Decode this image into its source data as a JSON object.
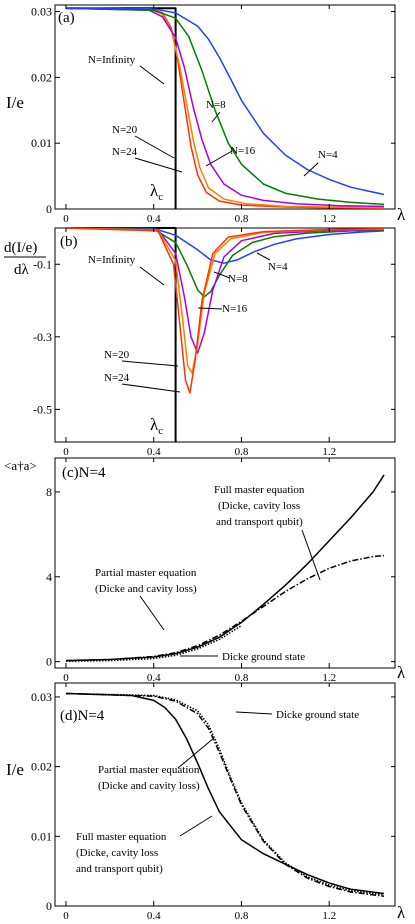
{
  "chart_data": [
    {
      "panel": "(a)",
      "type": "line",
      "ylabel": "I/e",
      "xlabel": "λ",
      "xlim": [
        -0.05,
        1.5
      ],
      "ylim": [
        0,
        0.031
      ],
      "xticks": [
        "0",
        "0.4",
        "0.8",
        "1.2"
      ],
      "yticks": [
        "0",
        "0.01",
        "0.02",
        "0.03"
      ],
      "critical_label": "λ",
      "critical_sub": "c",
      "critical_x": 0.5,
      "series": [
        {
          "name": "N=Infinity",
          "color": "#000000",
          "x": [
            0,
            0.49,
            0.5,
            0.5
          ],
          "y": [
            0.0305,
            0.0305,
            0.0305,
            0
          ]
        },
        {
          "name": "N=24",
          "color": "#ff3300",
          "x": [
            0,
            0.38,
            0.44,
            0.48,
            0.51,
            0.54,
            0.57,
            0.6,
            0.64,
            0.7,
            0.8,
            1.0,
            1.2,
            1.45
          ],
          "y": [
            0.0305,
            0.0304,
            0.0298,
            0.0275,
            0.0225,
            0.016,
            0.0095,
            0.0052,
            0.0025,
            0.0012,
            0.0006,
            0.0003,
            0.0002,
            0.0001
          ]
        },
        {
          "name": "N=20",
          "color": "#ff7f00",
          "x": [
            0,
            0.38,
            0.44,
            0.48,
            0.52,
            0.55,
            0.58,
            0.61,
            0.65,
            0.72,
            0.82,
            1.0,
            1.2,
            1.45
          ],
          "y": [
            0.0305,
            0.0304,
            0.0296,
            0.0272,
            0.0215,
            0.016,
            0.0105,
            0.0063,
            0.0032,
            0.0015,
            0.0008,
            0.0004,
            0.0003,
            0.0002
          ]
        },
        {
          "name": "N=16",
          "color": "#aa00ee",
          "x": [
            0,
            0.38,
            0.44,
            0.5,
            0.54,
            0.58,
            0.62,
            0.66,
            0.72,
            0.8,
            0.9,
            1.05,
            1.25,
            1.45
          ],
          "y": [
            0.0305,
            0.0302,
            0.0292,
            0.026,
            0.0215,
            0.0155,
            0.0105,
            0.0068,
            0.0038,
            0.0021,
            0.0013,
            0.0008,
            0.0005,
            0.0004
          ]
        },
        {
          "name": "N=8",
          "color": "#007f00",
          "x": [
            0,
            0.4,
            0.5,
            0.56,
            0.62,
            0.68,
            0.74,
            0.8,
            0.9,
            1.0,
            1.15,
            1.3,
            1.45
          ],
          "y": [
            0.0305,
            0.0302,
            0.029,
            0.0262,
            0.021,
            0.015,
            0.01,
            0.0068,
            0.0038,
            0.0024,
            0.0015,
            0.001,
            0.0007
          ]
        },
        {
          "name": "N=4",
          "color": "#2040ff",
          "x": [
            0,
            0.4,
            0.5,
            0.6,
            0.65,
            0.7,
            0.75,
            0.8,
            0.9,
            1.0,
            1.1,
            1.2,
            1.3,
            1.45
          ],
          "y": [
            0.0305,
            0.0304,
            0.0298,
            0.0278,
            0.0258,
            0.023,
            0.0198,
            0.0165,
            0.0115,
            0.0082,
            0.006,
            0.0045,
            0.0033,
            0.0022
          ]
        }
      ],
      "annotations": [
        {
          "text": "N=Infinity"
        },
        {
          "text": "N=8"
        },
        {
          "text": "N=16"
        },
        {
          "text": "N=20"
        },
        {
          "text": "N=24"
        },
        {
          "text": "N=4"
        }
      ]
    },
    {
      "panel": "(b)",
      "type": "line",
      "ylabel_num": "d(I/e)",
      "ylabel_den": "dλ",
      "xlabel": "",
      "xlim": [
        -0.05,
        1.5
      ],
      "ylim": [
        -0.59,
        0.0
      ],
      "xticks": [
        "0",
        "0.4",
        "0.8",
        "1.2"
      ],
      "yticks": [
        "-0.1",
        "-0.3",
        "-0.5"
      ],
      "critical_label": "λ",
      "critical_sub": "c",
      "critical_x": 0.5,
      "series": [
        {
          "name": "N=Infinity",
          "color": "#000000",
          "x": [
            0,
            0.49,
            0.5,
            0.5
          ],
          "y": [
            0,
            0,
            0,
            -0.59
          ]
        },
        {
          "name": "N=4",
          "color": "#2040ff",
          "x": [
            0,
            0.4,
            0.5,
            0.6,
            0.66,
            0.72,
            0.78,
            0.86,
            0.95,
            1.05,
            1.2,
            1.35,
            1.45
          ],
          "y": [
            0,
            -0.001,
            -0.02,
            -0.06,
            -0.088,
            -0.097,
            -0.088,
            -0.065,
            -0.045,
            -0.03,
            -0.018,
            -0.011,
            -0.008
          ]
        },
        {
          "name": "N=8",
          "color": "#007f00",
          "x": [
            0,
            0.4,
            0.5,
            0.55,
            0.6,
            0.63,
            0.66,
            0.7,
            0.76,
            0.85,
            0.95,
            1.1,
            1.3,
            1.45
          ],
          "y": [
            0,
            -0.003,
            -0.04,
            -0.1,
            -0.17,
            -0.19,
            -0.175,
            -0.13,
            -0.075,
            -0.04,
            -0.024,
            -0.014,
            -0.008,
            -0.006
          ]
        },
        {
          "name": "N=16",
          "color": "#aa00ee",
          "x": [
            0,
            0.42,
            0.5,
            0.54,
            0.57,
            0.6,
            0.63,
            0.67,
            0.72,
            0.8,
            0.95,
            1.2,
            1.45
          ],
          "y": [
            0,
            -0.005,
            -0.07,
            -0.19,
            -0.3,
            -0.345,
            -0.29,
            -0.17,
            -0.08,
            -0.035,
            -0.015,
            -0.007,
            -0.004
          ]
        },
        {
          "name": "N=20",
          "color": "#ff7f00",
          "x": [
            0,
            0.42,
            0.5,
            0.53,
            0.555,
            0.575,
            0.6,
            0.63,
            0.68,
            0.75,
            0.9,
            1.2,
            1.45
          ],
          "y": [
            0,
            -0.006,
            -0.09,
            -0.24,
            -0.38,
            -0.4,
            -0.32,
            -0.18,
            -0.07,
            -0.03,
            -0.012,
            -0.005,
            -0.003
          ]
        },
        {
          "name": "N=24",
          "color": "#ff3300",
          "x": [
            0,
            0.42,
            0.49,
            0.52,
            0.545,
            0.565,
            0.59,
            0.62,
            0.67,
            0.74,
            0.9,
            1.2,
            1.45
          ],
          "y": [
            0,
            -0.008,
            -0.1,
            -0.27,
            -0.42,
            -0.455,
            -0.36,
            -0.2,
            -0.07,
            -0.025,
            -0.01,
            -0.004,
            -0.002
          ]
        }
      ],
      "annotations": [
        {
          "text": "N=Infinity"
        },
        {
          "text": "N=8"
        },
        {
          "text": "N=16"
        },
        {
          "text": "N=20"
        },
        {
          "text": "N=24"
        },
        {
          "text": "N=4"
        }
      ]
    },
    {
      "panel": "(c)N=4",
      "type": "line",
      "ylabel": "<a†a>",
      "xlabel": "λ",
      "xlim": [
        -0.05,
        1.5
      ],
      "ylim": [
        -0.3,
        9.6
      ],
      "xticks": [
        "0",
        "0.4",
        "0.8",
        "1.2"
      ],
      "yticks": [
        "0",
        "4",
        "8"
      ],
      "series": [
        {
          "name": "Full master equation (Dicke, cavity loss and transport qubit)",
          "style": "solid",
          "color": "#000000",
          "x": [
            0,
            0.2,
            0.4,
            0.5,
            0.6,
            0.7,
            0.8,
            0.9,
            1.0,
            1.1,
            1.2,
            1.3,
            1.4,
            1.45
          ],
          "y": [
            0.05,
            0.1,
            0.22,
            0.38,
            0.68,
            1.15,
            1.85,
            2.7,
            3.6,
            4.6,
            5.7,
            6.8,
            8.0,
            8.8
          ]
        },
        {
          "name": "Partial master equation (Dicke and cavity loss)",
          "style": "dashdot",
          "color": "#000000",
          "x": [
            0,
            0.2,
            0.4,
            0.5,
            0.6,
            0.7,
            0.8,
            0.9,
            1.0,
            1.1,
            1.2,
            1.3,
            1.4,
            1.45
          ],
          "y": [
            0.05,
            0.1,
            0.24,
            0.42,
            0.75,
            1.25,
            1.9,
            2.6,
            3.3,
            3.9,
            4.4,
            4.75,
            4.95,
            5.0
          ]
        },
        {
          "name": "Dicke ground state",
          "style": "dotted",
          "color": "#000000",
          "x": [
            0,
            0.2,
            0.4,
            0.5,
            0.6,
            0.7,
            0.8
          ],
          "y": [
            0.02,
            0.05,
            0.15,
            0.3,
            0.6,
            1.05,
            1.7
          ]
        }
      ],
      "annotations": [
        {
          "text": "Full master equation"
        },
        {
          "text": "(Dicke, cavity loss"
        },
        {
          "text": "and transport qubit)"
        },
        {
          "text": "Partial master equation"
        },
        {
          "text": "(Dicke and cavity loss)"
        },
        {
          "text": "Dicke ground state"
        }
      ]
    },
    {
      "panel": "(d)N=4",
      "type": "line",
      "ylabel": "I/e",
      "xlabel": "λ",
      "xlim": [
        -0.05,
        1.5
      ],
      "ylim": [
        0,
        0.032
      ],
      "xticks": [
        "0",
        "0.4",
        "0.8",
        "1.2"
      ],
      "yticks": [
        "0",
        "0.01",
        "0.02",
        "0.03"
      ],
      "series": [
        {
          "name": "Dicke ground state",
          "style": "dotted",
          "color": "#000000",
          "x": [
            0,
            0.4,
            0.5,
            0.6,
            0.65,
            0.7,
            0.75,
            0.8,
            0.9,
            1.0,
            1.1,
            1.2,
            1.3,
            1.45
          ],
          "y": [
            0.0305,
            0.0302,
            0.0296,
            0.028,
            0.026,
            0.0225,
            0.0185,
            0.0148,
            0.0095,
            0.0062,
            0.0042,
            0.003,
            0.0022,
            0.0016
          ]
        },
        {
          "name": "Partial master equation (Dicke and cavity loss)",
          "style": "dashdot",
          "color": "#000000",
          "x": [
            0,
            0.4,
            0.5,
            0.6,
            0.65,
            0.7,
            0.75,
            0.8,
            0.9,
            1.0,
            1.1,
            1.2,
            1.3,
            1.45
          ],
          "y": [
            0.0305,
            0.0301,
            0.0294,
            0.0276,
            0.0255,
            0.022,
            0.0182,
            0.0145,
            0.0093,
            0.006,
            0.004,
            0.0028,
            0.002,
            0.0014
          ]
        },
        {
          "name": "Full master equation (Dicke, cavity loss and transport qubit)",
          "style": "solid",
          "color": "#000000",
          "x": [
            0,
            0.3,
            0.4,
            0.45,
            0.5,
            0.55,
            0.6,
            0.65,
            0.7,
            0.8,
            0.9,
            1.0,
            1.1,
            1.2,
            1.3,
            1.45
          ],
          "y": [
            0.0305,
            0.0302,
            0.0295,
            0.0285,
            0.0268,
            0.024,
            0.0205,
            0.0168,
            0.0135,
            0.0095,
            0.0075,
            0.006,
            0.0045,
            0.0033,
            0.0024,
            0.0018
          ]
        }
      ],
      "annotations": [
        {
          "text": "Dicke ground state"
        },
        {
          "text": "Partial master equation"
        },
        {
          "text": "(Dicke and cavity loss)"
        },
        {
          "text": "Full master equation"
        },
        {
          "text": "(Dicke, cavity loss"
        },
        {
          "text": "and transport qubit)"
        }
      ]
    }
  ]
}
